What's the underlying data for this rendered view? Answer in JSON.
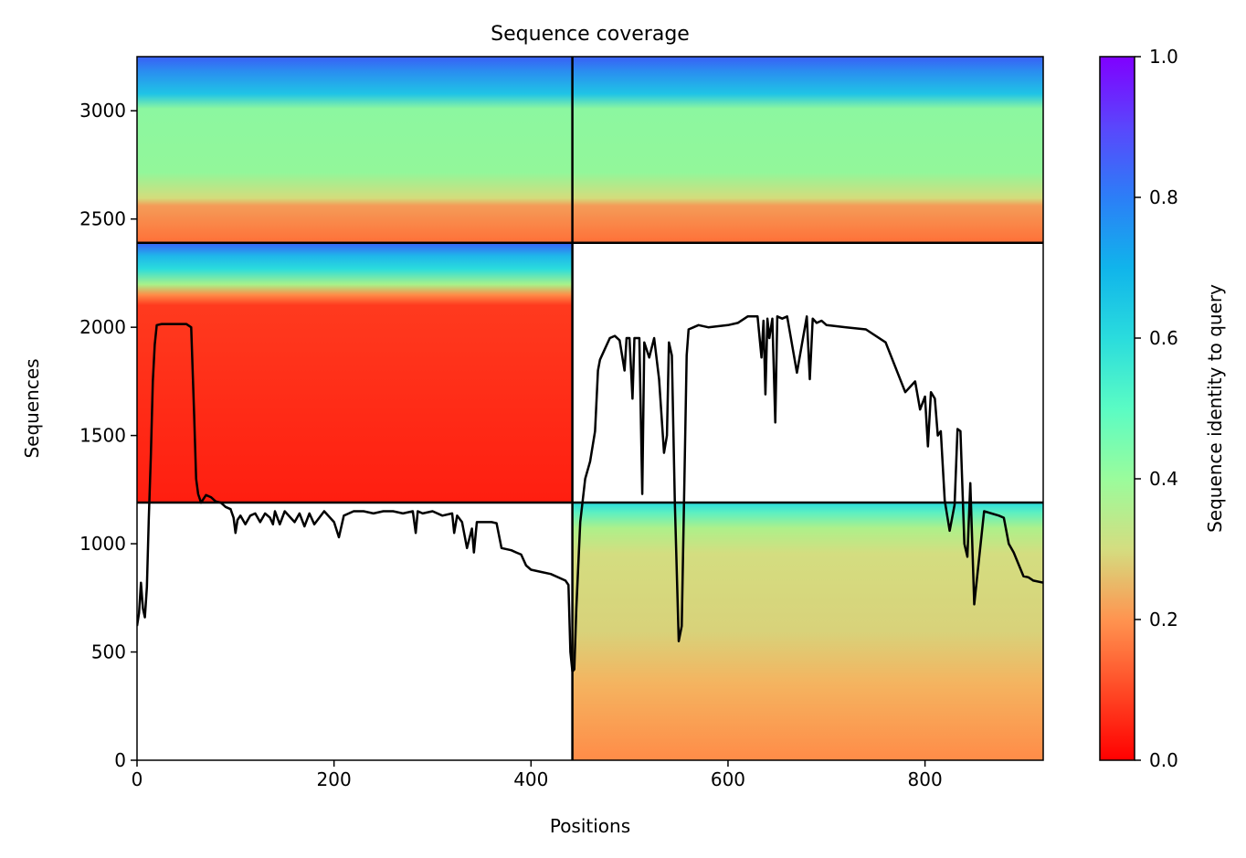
{
  "chart_data": {
    "type": "heatmap",
    "title": "Sequence coverage",
    "xlabel": "Positions",
    "ylabel": "Sequences",
    "xlim": [
      0,
      920
    ],
    "ylim": [
      0,
      3250
    ],
    "xticks": [
      0,
      200,
      400,
      600,
      800
    ],
    "yticks": [
      0,
      500,
      1000,
      1500,
      2000,
      2500,
      3000
    ],
    "colorbar": {
      "label": "Sequence identity to query",
      "range": [
        0,
        1
      ],
      "ticks": [
        0.0,
        0.2,
        0.4,
        0.6,
        0.8,
        1.0
      ],
      "colormap": "rainbow_r",
      "colors": [
        "#ff0000",
        "#ff6a36",
        "#d4dd80",
        "#80ffb4",
        "#2adcdd",
        "#2c7ef7",
        "#8000ff"
      ]
    },
    "chain_boundaries": {
      "x": [
        442
      ],
      "y": [
        1190,
        2390
      ]
    },
    "blocks": [
      {
        "x": [
          0,
          442
        ],
        "y": [
          2390,
          3250
        ],
        "identity_top": 0.95,
        "identity_bottom": 0.15
      },
      {
        "x": [
          442,
          920
        ],
        "y": [
          2390,
          3250
        ],
        "identity_top": 0.95,
        "identity_bottom": 0.15
      },
      {
        "x": [
          0,
          442
        ],
        "y": [
          1190,
          2390
        ],
        "identity_top": 0.95,
        "identity_bottom": 0.02
      },
      {
        "x": [
          442,
          920
        ],
        "y": [
          0,
          1190
        ],
        "identity_top": 0.7,
        "identity_bottom": 0.2
      }
    ],
    "coverage_line": {
      "name": "coverage",
      "color": "#000000",
      "x": [
        0,
        2,
        4,
        6,
        8,
        10,
        12,
        14,
        16,
        18,
        20,
        25,
        30,
        40,
        50,
        55,
        58,
        60,
        62,
        65,
        70,
        75,
        80,
        85,
        90,
        95,
        98,
        100,
        102,
        105,
        110,
        115,
        120,
        125,
        130,
        135,
        138,
        140,
        145,
        150,
        160,
        165,
        170,
        175,
        180,
        190,
        200,
        205,
        210,
        220,
        230,
        240,
        250,
        260,
        270,
        280,
        283,
        285,
        290,
        300,
        310,
        320,
        322,
        325,
        330,
        335,
        340,
        342,
        345,
        350,
        360,
        365,
        370,
        380,
        385,
        390,
        395,
        400,
        410,
        420,
        430,
        435,
        438,
        440,
        442,
        444,
        446,
        450,
        455,
        460,
        465,
        468,
        470,
        475,
        480,
        485,
        490,
        495,
        497,
        500,
        503,
        505,
        510,
        513,
        515,
        520,
        525,
        530,
        535,
        538,
        540,
        543,
        546,
        550,
        553,
        555,
        558,
        560,
        565,
        570,
        580,
        600,
        610,
        620,
        625,
        630,
        634,
        636,
        638,
        640,
        642,
        645,
        648,
        650,
        655,
        660,
        670,
        680,
        683,
        686,
        690,
        695,
        700,
        720,
        740,
        760,
        780,
        790,
        795,
        800,
        803,
        806,
        810,
        813,
        816,
        820,
        825,
        830,
        833,
        836,
        840,
        843,
        846,
        850,
        860,
        875,
        880,
        885,
        890,
        900,
        905,
        910,
        920
      ],
      "y": [
        620,
        680,
        820,
        700,
        660,
        800,
        1120,
        1400,
        1750,
        1920,
        2010,
        2015,
        2015,
        2015,
        2015,
        2000,
        1600,
        1300,
        1230,
        1190,
        1225,
        1215,
        1195,
        1190,
        1170,
        1160,
        1120,
        1050,
        1110,
        1130,
        1090,
        1130,
        1140,
        1100,
        1140,
        1120,
        1090,
        1150,
        1090,
        1150,
        1100,
        1140,
        1080,
        1140,
        1090,
        1150,
        1100,
        1030,
        1130,
        1150,
        1150,
        1140,
        1150,
        1150,
        1140,
        1150,
        1050,
        1150,
        1140,
        1150,
        1130,
        1140,
        1050,
        1130,
        1100,
        980,
        1070,
        960,
        1100,
        1100,
        1100,
        1095,
        980,
        970,
        960,
        950,
        900,
        880,
        870,
        860,
        840,
        830,
        810,
        500,
        410,
        420,
        700,
        1100,
        1300,
        1380,
        1520,
        1800,
        1850,
        1900,
        1950,
        1960,
        1940,
        1800,
        1950,
        1950,
        1670,
        1950,
        1950,
        1230,
        1930,
        1860,
        1950,
        1760,
        1420,
        1500,
        1930,
        1870,
        1200,
        550,
        620,
        1100,
        1870,
        1990,
        2000,
        2010,
        2000,
        2010,
        2020,
        2050,
        2050,
        2050,
        1860,
        2030,
        1690,
        2040,
        1950,
        2040,
        1560,
        2050,
        2040,
        2050,
        1790,
        2050,
        1760,
        2040,
        2020,
        2030,
        2010,
        2000,
        1990,
        1930,
        1700,
        1750,
        1620,
        1680,
        1450,
        1700,
        1670,
        1500,
        1520,
        1200,
        1060,
        1180,
        1530,
        1520,
        1000,
        940,
        1280,
        720,
        1150,
        1130,
        1120,
        1000,
        960,
        850,
        845,
        830,
        820
      ]
    }
  }
}
